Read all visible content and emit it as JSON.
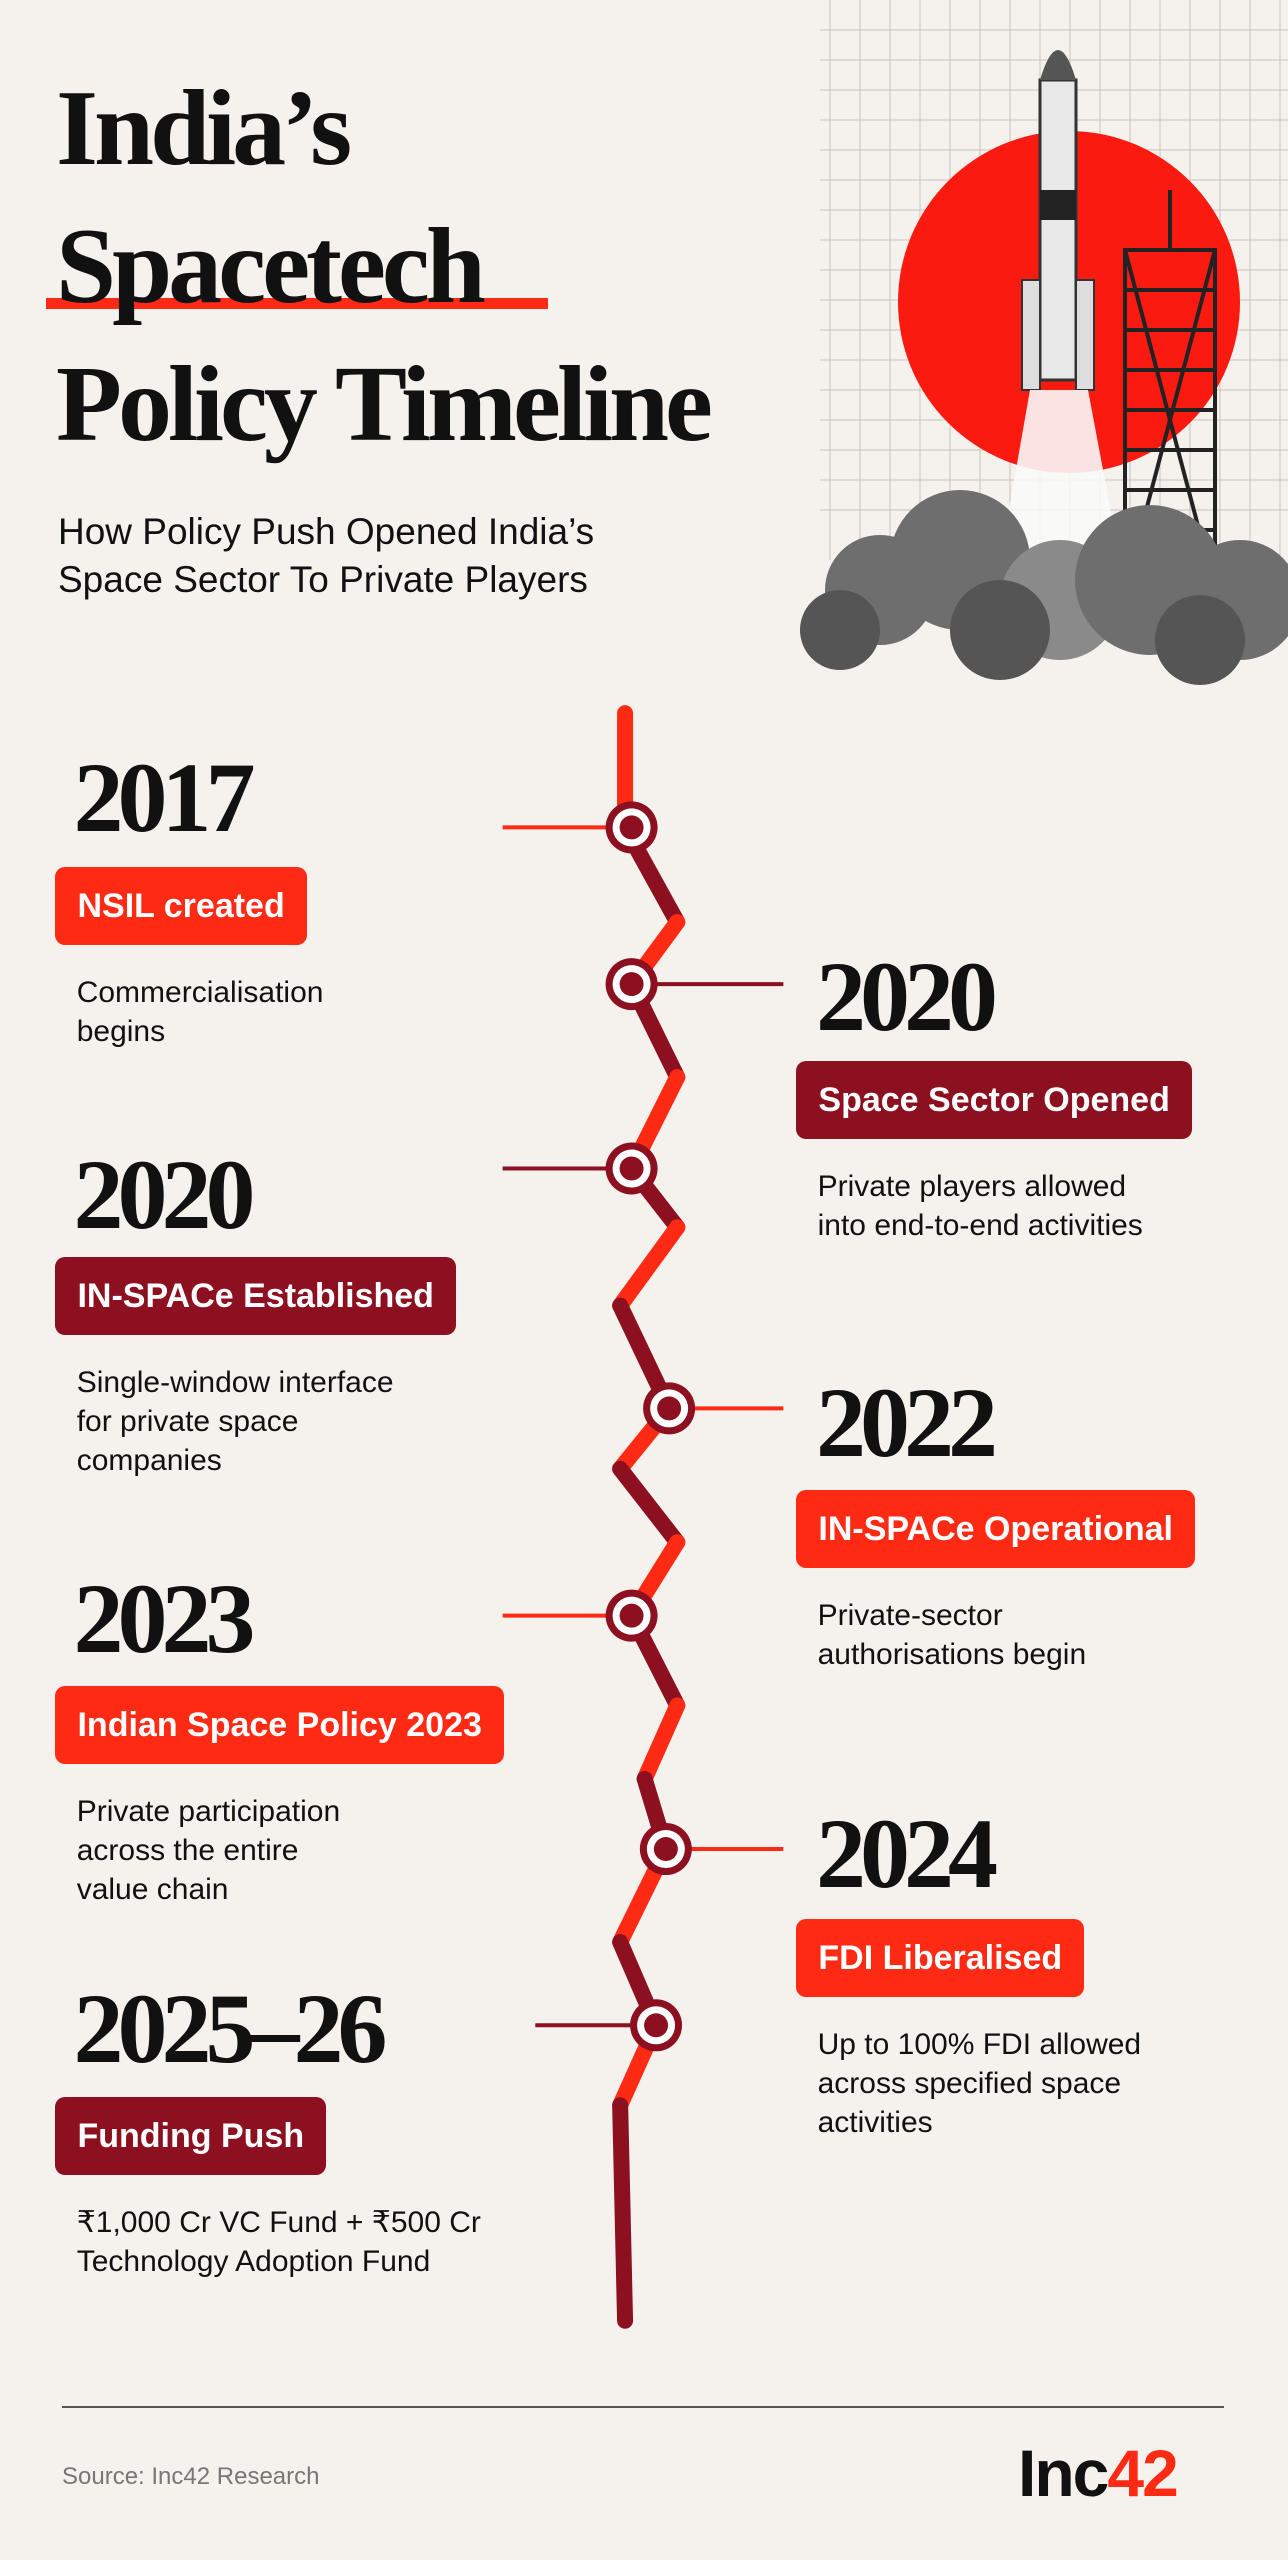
{
  "header": {
    "title_lines": [
      "India’s",
      "Spacetech",
      "Policy Timeline"
    ],
    "subtitle_lines": [
      "How Policy Push Opened India’s",
      "Space Sector To Private Players"
    ]
  },
  "timeline": [
    {
      "year": "2017",
      "label": "NSIL created",
      "description_lines": [
        "Commercialisation",
        "begins"
      ],
      "side": "left",
      "color": "#ff2a14"
    },
    {
      "year": "2020",
      "label": "Space Sector Opened",
      "description_lines": [
        "Private players allowed",
        "into end-to-end activities"
      ],
      "side": "right",
      "color": "#8c1020"
    },
    {
      "year": "2020",
      "label": "IN-SPACe Established",
      "description_lines": [
        "Single-window interface",
        "for private space",
        "companies"
      ],
      "side": "left",
      "color": "#8c1020"
    },
    {
      "year": "2022",
      "label": "IN-SPACe Operational",
      "description_lines": [
        "Private-sector",
        "authorisations begin"
      ],
      "side": "right",
      "color": "#ff2a14"
    },
    {
      "year": "2023",
      "label": "Indian Space Policy 2023",
      "description_lines": [
        "Private participation",
        "across the entire",
        "value chain"
      ],
      "side": "left",
      "color": "#ff2a14"
    },
    {
      "year": "2024",
      "label": "FDI Liberalised",
      "description_lines": [
        "Up to 100% FDI allowed",
        "across specified space",
        "activities"
      ],
      "side": "right",
      "color": "#ff2a14"
    },
    {
      "year": "2025–26",
      "label": "Funding Push",
      "description_lines": [
        "₹1,000 Cr VC Fund + ₹500 Cr",
        "Technology Adoption Fund"
      ],
      "side": "left",
      "color": "#8c1020"
    }
  ],
  "footer": {
    "source": "Source: Inc42 Research",
    "logo": [
      "Inc",
      "42"
    ]
  }
}
